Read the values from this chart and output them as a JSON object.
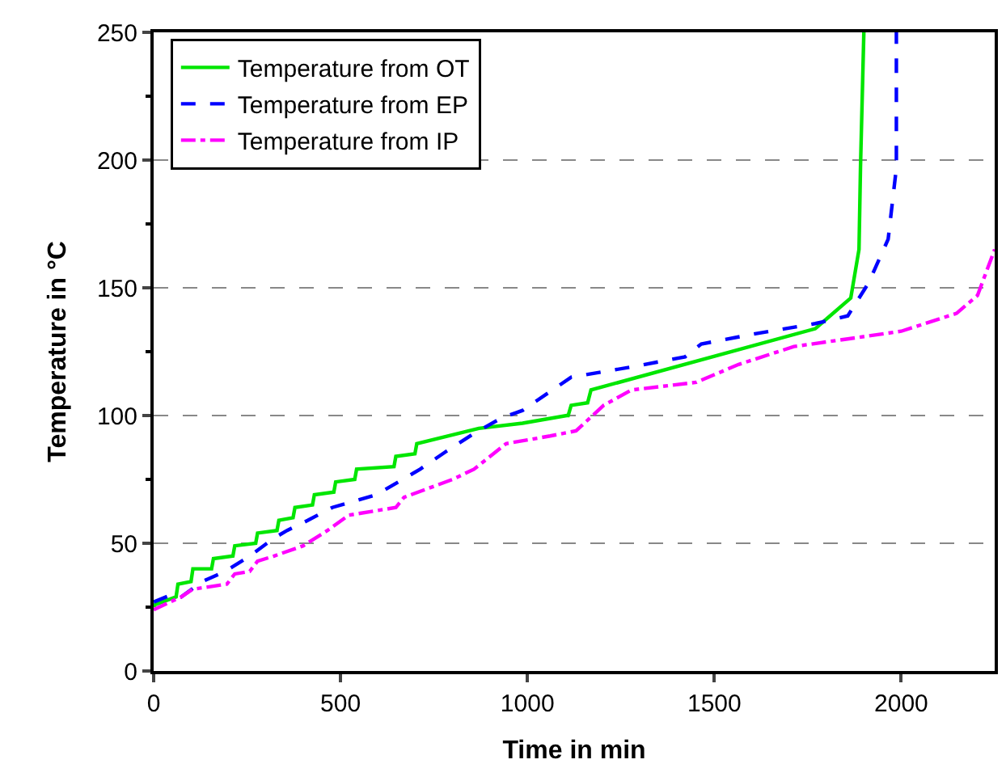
{
  "chart_data": {
    "type": "line",
    "xlabel": "Time in min",
    "ylabel": "Temperature in °C",
    "xlim": [
      0,
      2250
    ],
    "xticks": [
      0,
      500,
      1000,
      1500,
      2000
    ],
    "ylim": [
      0,
      250
    ],
    "yticks": [
      0,
      50,
      100,
      150,
      200,
      250
    ],
    "grid": "y",
    "legend": "top left",
    "marker": "none",
    "series": [
      {
        "name": "Temperature from OT",
        "color": "#00e600",
        "line_style": "solid",
        "x": [
          0,
          4,
          60,
          65,
          100,
          105,
          155,
          160,
          212,
          217,
          273,
          278,
          330,
          335,
          373,
          378,
          425,
          430,
          482,
          487,
          538,
          543,
          643,
          648,
          699,
          704,
          870,
          987,
          1105,
          1109,
          1117,
          1161,
          1170,
          1770,
          1865,
          1887,
          1891,
          1900
        ],
        "values": [
          25,
          26,
          29,
          34,
          35,
          40,
          40,
          44,
          45,
          49,
          50,
          54,
          55,
          59,
          60,
          64,
          65,
          69,
          70,
          74,
          75,
          79,
          80,
          84,
          85,
          89,
          95,
          97,
          100,
          100,
          104,
          105,
          110,
          134,
          146,
          165,
          197,
          250
        ]
      },
      {
        "name": "Temperature from EP",
        "color": "#0000ff",
        "line_style": "dashed",
        "x": [
          0,
          50,
          74,
          130,
          191,
          257,
          322,
          357,
          413,
          478,
          596,
          713,
          783,
          857,
          930,
          987,
          1117,
          1278,
          1422,
          1465,
          1609,
          1770,
          1857,
          1913,
          1965,
          1987,
          1987
        ],
        "values": [
          27,
          30,
          29,
          35,
          39,
          45,
          52,
          55,
          59,
          64,
          69,
          79,
          86,
          93,
          99,
          102,
          115,
          119,
          123,
          128,
          132,
          136,
          139,
          152,
          169,
          197,
          250
        ]
      },
      {
        "name": "Temperature from IP",
        "color": "#ff00ff",
        "line_style": "dashdot",
        "x": [
          0,
          74,
          104,
          196,
          217,
          257,
          278,
          322,
          400,
          465,
          522,
          648,
          670,
          800,
          857,
          943,
          1061,
          1130,
          1204,
          1278,
          1452,
          1565,
          1713,
          1857,
          2000,
          2148,
          2204,
          2250
        ],
        "values": [
          24,
          29,
          32,
          34,
          38,
          39,
          43,
          45,
          49,
          55,
          61,
          64,
          68,
          75,
          79,
          89,
          92,
          94,
          104,
          110,
          113,
          120,
          127,
          130,
          133,
          140,
          147,
          165
        ]
      }
    ]
  }
}
